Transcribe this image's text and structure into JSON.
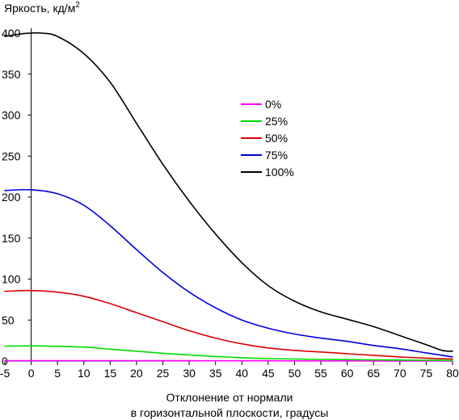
{
  "chart_data": {
    "type": "line",
    "ylabel": "Яркость, кд/м",
    "ylabel_sup": "2",
    "xlabel_line1": "Отклонение от нормали",
    "xlabel_line2": "в горизонтальной плоскости, градусы",
    "xlim": [
      -5,
      80
    ],
    "ylim": [
      0,
      400
    ],
    "xticks": [
      -5,
      0,
      5,
      10,
      15,
      20,
      25,
      30,
      35,
      40,
      45,
      50,
      55,
      60,
      65,
      70,
      75,
      80
    ],
    "yticks": [
      0,
      50,
      100,
      150,
      200,
      250,
      300,
      350,
      400
    ],
    "grid": false,
    "legend_position": "center-right",
    "series": [
      {
        "name": "0%",
        "color": "#ff00ff",
        "x": [
          -5,
          0,
          5,
          10,
          15,
          20,
          25,
          30,
          35,
          40,
          45,
          50,
          55,
          60,
          65,
          70,
          75,
          80
        ],
        "y": [
          0.5,
          0.5,
          0.5,
          0.5,
          0.5,
          0.5,
          0.4,
          0.4,
          0.3,
          0.3,
          0.3,
          0.2,
          0.2,
          0.2,
          0.1,
          0.1,
          0.1,
          0.1
        ]
      },
      {
        "name": "25%",
        "color": "#00dd00",
        "x": [
          -5,
          0,
          5,
          10,
          15,
          20,
          25,
          30,
          35,
          40,
          45,
          50,
          55,
          60,
          65,
          70,
          75,
          80
        ],
        "y": [
          18,
          18.5,
          18,
          17,
          14.5,
          12,
          9.5,
          7.5,
          5.5,
          4,
          3,
          2.5,
          2,
          1.8,
          1.5,
          1.2,
          1,
          0.8
        ]
      },
      {
        "name": "50%",
        "color": "#dd0000",
        "x": [
          -5,
          0,
          5,
          10,
          15,
          20,
          25,
          30,
          35,
          40,
          45,
          50,
          55,
          60,
          65,
          70,
          75,
          80
        ],
        "y": [
          85,
          86,
          84,
          79,
          70,
          59,
          48,
          37,
          28,
          21,
          16,
          13,
          11,
          9,
          7,
          5,
          3.5,
          2.5
        ]
      },
      {
        "name": "75%",
        "color": "#0000dd",
        "x": [
          -5,
          0,
          5,
          10,
          15,
          20,
          25,
          30,
          35,
          40,
          45,
          50,
          55,
          60,
          65,
          70,
          75,
          80
        ],
        "y": [
          208,
          209,
          204,
          190,
          165,
          136,
          108,
          84,
          65,
          50,
          40,
          33,
          28,
          24,
          19,
          15,
          10,
          5
        ]
      },
      {
        "name": "100%",
        "color": "#000000",
        "x": [
          -5,
          -2,
          0,
          2,
          5,
          10,
          15,
          20,
          25,
          30,
          35,
          40,
          45,
          50,
          55,
          60,
          65,
          70,
          75,
          78,
          80
        ],
        "y": [
          396,
          399,
          400,
          400,
          396,
          375,
          340,
          290,
          240,
          195,
          155,
          120,
          92,
          73,
          60,
          51,
          42,
          31,
          20,
          13,
          12
        ]
      }
    ]
  }
}
